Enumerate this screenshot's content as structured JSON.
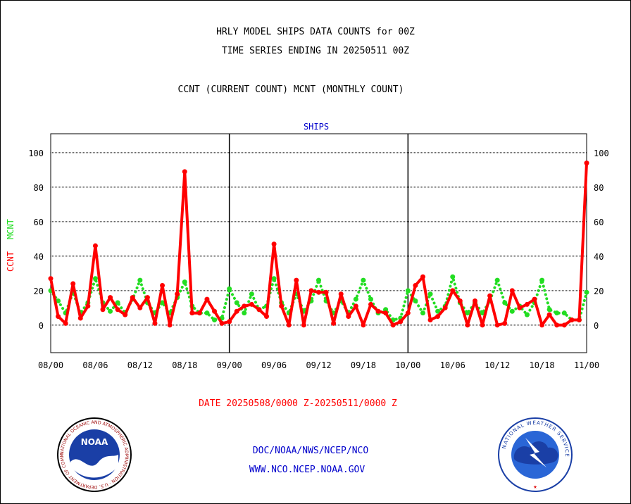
{
  "header": {
    "title_line1": "HRLY MODEL SHIPS DATA COUNTS for 00Z",
    "title_line2": "TIME SERIES ENDING IN 20250511 00Z",
    "subtitle": "CCNT (CURRENT COUNT) MCNT (MONTHLY COUNT)"
  },
  "footer": {
    "date_range": "DATE 20250508/0000 Z-20250511/0000 Z",
    "credit_line1": "DOC/NOAA/NWS/NCEP/NCO",
    "credit_line2": "WWW.NCO.NCEP.NOAA.GOV"
  },
  "logos": {
    "left_name": "NOAA",
    "left_ring_text": "NATIONAL OCEANIC AND ATMOSPHERIC ADMINISTRATION · U.S. DEPARTMENT OF COMMERCE",
    "right_ring_text": "NATIONAL WEATHER SERVICE"
  },
  "colors": {
    "ccnt": "#ff0000",
    "mcnt": "#22dd22",
    "panel_label": "#0000cc",
    "grid": "#000000"
  },
  "chart_data": {
    "type": "line",
    "panel_label": "SHIPS",
    "ylabel_ccnt": "CCNT",
    "ylabel_mcnt": "MCNT",
    "ylim": [
      -16,
      111
    ],
    "yticks": [
      0,
      20,
      40,
      60,
      80,
      100
    ],
    "ytick_labels": [
      "0",
      "20",
      "40",
      "60",
      "80",
      "100"
    ],
    "grid": true,
    "xlim": [
      0,
      72
    ],
    "xticks": [
      0,
      6,
      12,
      18,
      24,
      30,
      36,
      42,
      48,
      54,
      60,
      66,
      72
    ],
    "xtick_labels": [
      "08/00",
      "08/06",
      "08/12",
      "08/18",
      "09/00",
      "09/06",
      "09/12",
      "09/18",
      "10/00",
      "10/06",
      "10/12",
      "10/18",
      "11/00"
    ],
    "day_boundaries": [
      24,
      48
    ],
    "series": [
      {
        "name": "CCNT",
        "color": "#ff0000",
        "style": "solid",
        "x": [
          0,
          1,
          2,
          3,
          4,
          5,
          6,
          7,
          8,
          9,
          10,
          11,
          12,
          13,
          14,
          15,
          16,
          17,
          18,
          19,
          20,
          21,
          22,
          23,
          24,
          25,
          26,
          27,
          28,
          29,
          30,
          31,
          32,
          33,
          34,
          35,
          36,
          37,
          38,
          39,
          40,
          41,
          42,
          43,
          44,
          45,
          46,
          47,
          48,
          49,
          50,
          51,
          52,
          53,
          54,
          55,
          56,
          57,
          58,
          59,
          60,
          61,
          62,
          63,
          64,
          65,
          66,
          67,
          68,
          69,
          70,
          71,
          72
        ],
        "values": [
          27,
          5,
          1,
          24,
          4,
          11,
          46,
          9,
          16,
          9,
          6,
          16,
          10,
          16,
          1,
          23,
          0,
          18,
          89,
          7,
          7,
          15,
          8,
          1,
          2,
          8,
          11,
          12,
          9,
          5,
          47,
          11,
          0,
          26,
          0,
          20,
          19,
          19,
          1,
          18,
          5,
          11,
          0,
          12,
          8,
          7,
          0,
          2,
          7,
          23,
          28,
          3,
          5,
          10,
          20,
          14,
          0,
          14,
          0,
          17,
          0,
          1,
          20,
          10,
          12,
          15,
          0,
          6,
          0,
          0,
          3,
          3,
          94
        ]
      },
      {
        "name": "MCNT",
        "color": "#22dd22",
        "style": "dotted",
        "x": [
          0,
          1,
          2,
          3,
          4,
          5,
          6,
          7,
          8,
          9,
          10,
          11,
          12,
          13,
          14,
          15,
          16,
          17,
          18,
          19,
          20,
          21,
          22,
          23,
          24,
          25,
          26,
          27,
          28,
          29,
          30,
          31,
          32,
          33,
          34,
          35,
          36,
          37,
          38,
          39,
          40,
          41,
          42,
          43,
          44,
          45,
          46,
          47,
          48,
          49,
          50,
          51,
          52,
          53,
          54,
          55,
          56,
          57,
          58,
          59,
          60,
          61,
          62,
          63,
          64,
          65,
          66,
          67,
          68,
          69,
          70,
          71,
          72
        ],
        "values": [
          20,
          14,
          7,
          19,
          7,
          13,
          27,
          13,
          8,
          13,
          7,
          15,
          26,
          13,
          7,
          13,
          7,
          16,
          25,
          11,
          7,
          7,
          3,
          4,
          21,
          13,
          7,
          18,
          9,
          11,
          27,
          13,
          7,
          18,
          8,
          14,
          26,
          14,
          7,
          14,
          7,
          15,
          26,
          15,
          7,
          9,
          3,
          4,
          20,
          14,
          7,
          18,
          8,
          11,
          28,
          13,
          7,
          13,
          7,
          14,
          26,
          13,
          8,
          11,
          6,
          13,
          26,
          9,
          7,
          7,
          3,
          3,
          19
        ]
      }
    ]
  }
}
